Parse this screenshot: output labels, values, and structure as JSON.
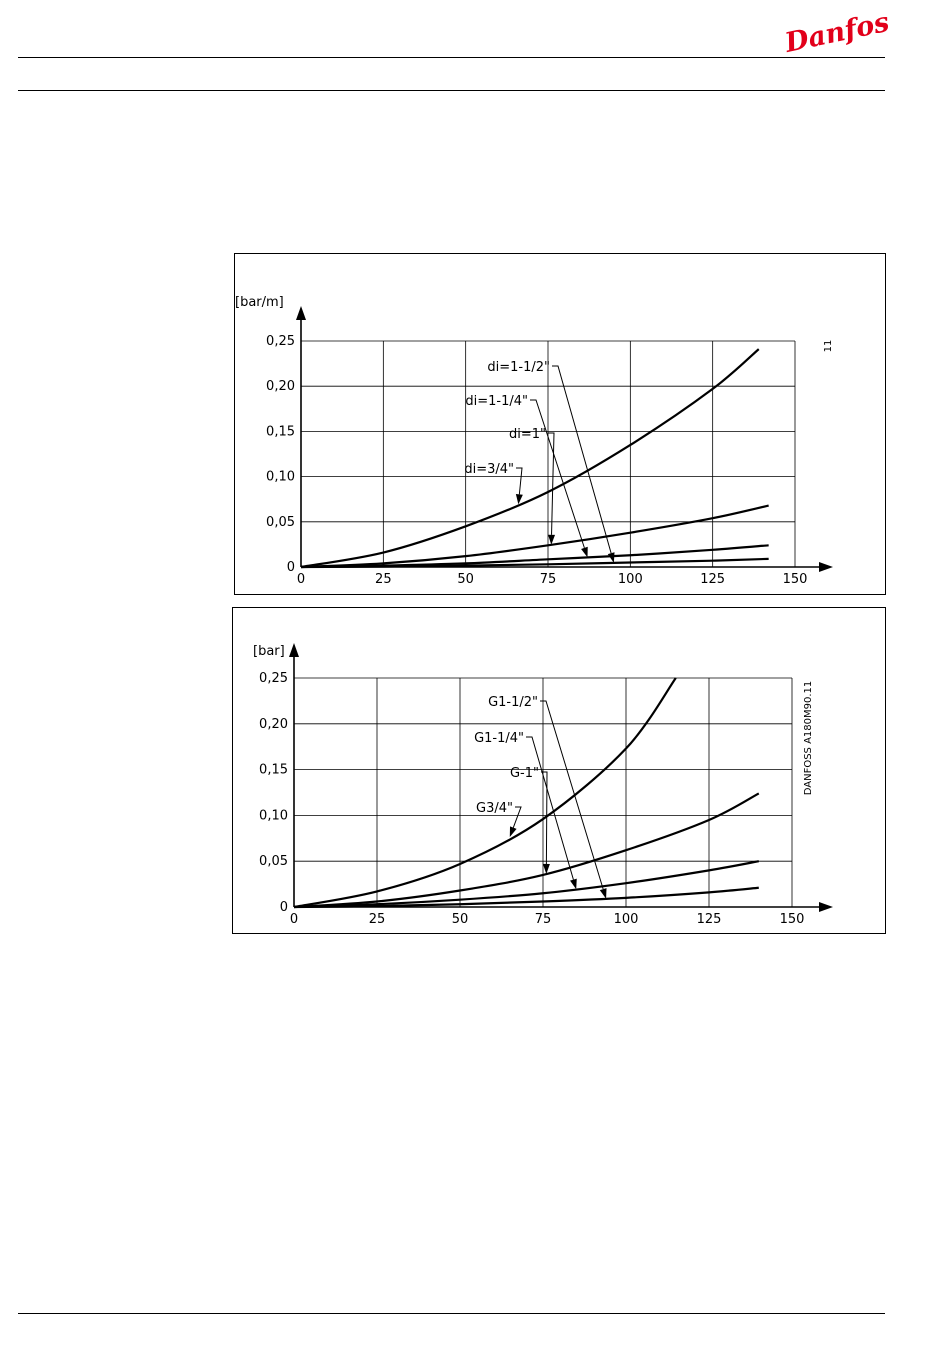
{
  "header": {
    "brand": "Danfoss"
  },
  "chart_data": [
    {
      "type": "line",
      "title": "",
      "xlabel": "",
      "ylabel": "[bar/m]",
      "side_label": "11",
      "xlim": [
        0,
        150
      ],
      "ylim": [
        0,
        0.25
      ],
      "x_ticks": [
        "0",
        "25",
        "50",
        "75",
        "100",
        "125",
        "150"
      ],
      "y_ticks": [
        "0",
        "0,05",
        "0,10",
        "0,15",
        "0,20",
        "0,25"
      ],
      "grid": true,
      "series": [
        {
          "name": "di=3/4\"",
          "x": [
            0,
            25,
            50,
            75,
            100,
            125,
            139
          ],
          "y": [
            0,
            0.016,
            0.045,
            0.083,
            0.135,
            0.197,
            0.241
          ]
        },
        {
          "name": "di=1\"",
          "x": [
            0,
            25,
            50,
            75,
            100,
            125,
            142
          ],
          "y": [
            0,
            0.004,
            0.012,
            0.024,
            0.038,
            0.054,
            0.068
          ]
        },
        {
          "name": "di=1-1/4\"",
          "x": [
            0,
            25,
            50,
            75,
            100,
            125,
            142
          ],
          "y": [
            0,
            0.0015,
            0.004,
            0.0085,
            0.013,
            0.019,
            0.024
          ]
        },
        {
          "name": "di=1-1/2\"",
          "x": [
            0,
            25,
            50,
            75,
            100,
            125,
            142
          ],
          "y": [
            0,
            0.0005,
            0.0015,
            0.003,
            0.005,
            0.007,
            0.009
          ]
        }
      ],
      "annotations": [
        {
          "text": "di=1-1/2\"",
          "series": 3,
          "point_x": 95
        },
        {
          "text": "di=1-1/4\"",
          "series": 2,
          "point_x": 87
        },
        {
          "text": "di=1\"",
          "series": 1,
          "point_x": 76
        },
        {
          "text": "di=3/4\"",
          "series": 0,
          "point_x": 66
        }
      ]
    },
    {
      "type": "line",
      "title": "",
      "xlabel": "",
      "ylabel": "[bar]",
      "side_label": "DANFOSS A180M90.11",
      "xlim": [
        0,
        150
      ],
      "ylim": [
        0,
        0.25
      ],
      "x_ticks": [
        "0",
        "25",
        "50",
        "75",
        "100",
        "125",
        "150"
      ],
      "y_ticks": [
        "0",
        "0,05",
        "0,10",
        "0,15",
        "0,20",
        "0,25"
      ],
      "grid": true,
      "series": [
        {
          "name": "G3/4\"",
          "x": [
            0,
            25,
            50,
            75,
            100,
            115
          ],
          "y": [
            0,
            0.017,
            0.047,
            0.096,
            0.173,
            0.25
          ]
        },
        {
          "name": "G-1\"",
          "x": [
            0,
            25,
            50,
            75,
            100,
            125,
            140
          ],
          "y": [
            0,
            0.006,
            0.018,
            0.035,
            0.062,
            0.095,
            0.124
          ]
        },
        {
          "name": "G1-1/4\"",
          "x": [
            0,
            25,
            50,
            75,
            100,
            125,
            140
          ],
          "y": [
            0,
            0.003,
            0.008,
            0.015,
            0.026,
            0.04,
            0.05
          ]
        },
        {
          "name": "G1-1/2\"",
          "x": [
            0,
            25,
            50,
            75,
            100,
            125,
            140
          ],
          "y": [
            0,
            0.001,
            0.003,
            0.006,
            0.01,
            0.016,
            0.021
          ]
        }
      ],
      "annotations": [
        {
          "text": "G1-1/2\"",
          "series": 3,
          "point_x": 94
        },
        {
          "text": "G1-1/4\"",
          "series": 2,
          "point_x": 85
        },
        {
          "text": "G-1\"",
          "series": 1,
          "point_x": 76
        },
        {
          "text": "G3/4\"",
          "series": 0,
          "point_x": 65
        }
      ]
    }
  ]
}
